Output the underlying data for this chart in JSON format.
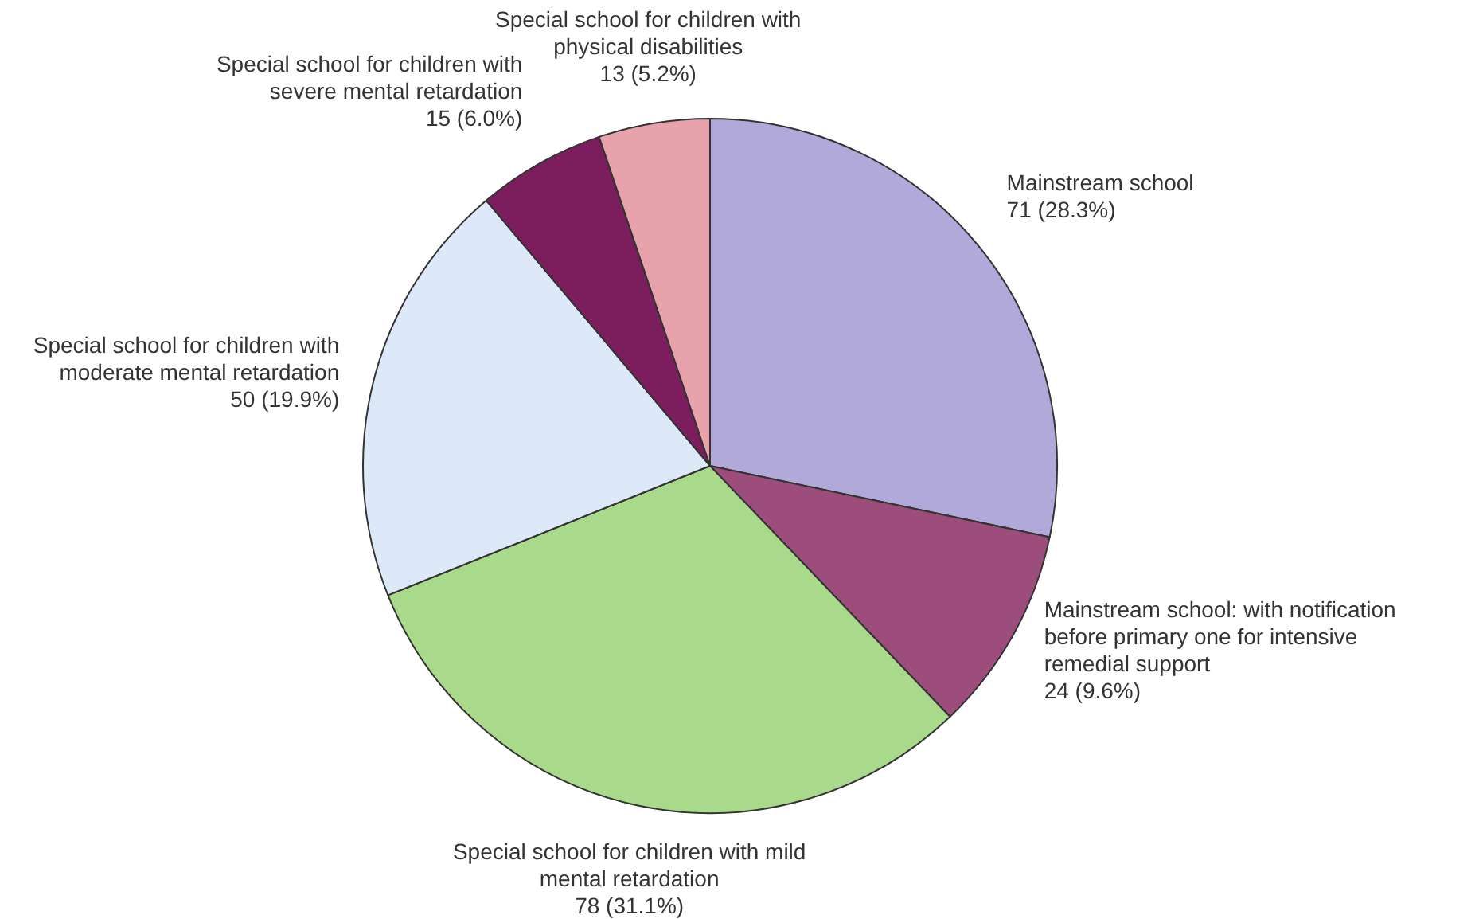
{
  "chart_data": {
    "type": "pie",
    "categories": [
      "Mainstream school",
      "Mainstream school: with notification before primary one for intensive remedial support",
      "Special school for children with mild mental retardation",
      "Special school for children with moderate mental retardation",
      "Special school for children with severe mental retardation",
      "Special school for children with physical disabilities"
    ],
    "values": [
      71,
      24,
      78,
      50,
      15,
      13
    ],
    "value_labels": [
      "71 (28.3%)",
      "24 (9.6%)",
      "78 (31.1%)",
      "50 (19.9%)",
      "15 (6.0%)",
      "13 (5.2%)"
    ],
    "colors": [
      "#b1a9d9",
      "#9c4d7c",
      "#a9d98b",
      "#dde9f8",
      "#7c1d5e",
      "#e8a2ab"
    ],
    "legend": false
  }
}
